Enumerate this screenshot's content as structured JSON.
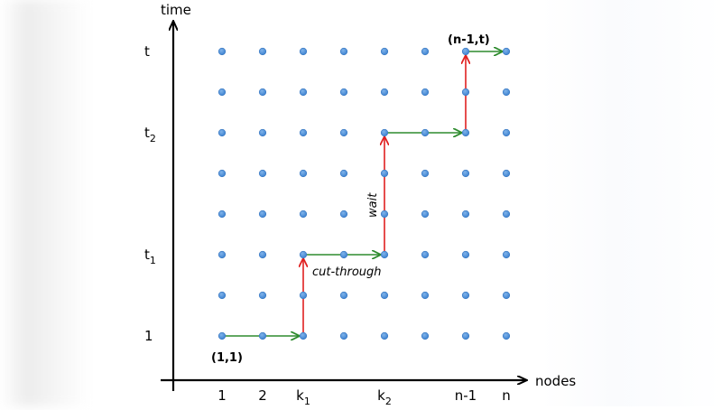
{
  "colors": {
    "dot": "#4a8fd8",
    "dot_stroke": "#3a78c0",
    "forward_arrow": "#2e8b2e",
    "wait_arrow": "#e02020",
    "axis": "#000000"
  },
  "axes": {
    "y_label": "time",
    "x_label": "nodes",
    "y_ticks": [
      {
        "main": "t",
        "sub": "",
        "row": 7
      },
      {
        "main": "t",
        "sub": "2",
        "row": 5
      },
      {
        "main": "t",
        "sub": "1",
        "row": 2
      },
      {
        "main": "1",
        "sub": "",
        "row": 0
      }
    ],
    "x_ticks": [
      {
        "main": "1",
        "sub": "",
        "col": 0
      },
      {
        "main": "2",
        "sub": "",
        "col": 1
      },
      {
        "main": "k",
        "sub": "1",
        "col": 2
      },
      {
        "main": "k",
        "sub": "2",
        "col": 4
      },
      {
        "main": "n-1",
        "sub": "",
        "col": 6
      },
      {
        "main": "n",
        "sub": "",
        "col": 7
      }
    ]
  },
  "grid": {
    "columns": 8,
    "rows": 8
  },
  "annotations": {
    "start_label": "(1,1)",
    "end_label": "(n-1,t)",
    "cut_through_label": "cut-through",
    "wait_label": "wait"
  },
  "path": [
    {
      "type": "forward",
      "from": [
        0,
        0
      ],
      "to": [
        2,
        0
      ]
    },
    {
      "type": "wait",
      "from": [
        2,
        0
      ],
      "to": [
        2,
        2
      ]
    },
    {
      "type": "forward",
      "from": [
        2,
        2
      ],
      "to": [
        4,
        2
      ]
    },
    {
      "type": "wait",
      "from": [
        4,
        2
      ],
      "to": [
        4,
        5
      ]
    },
    {
      "type": "forward",
      "from": [
        4,
        5
      ],
      "to": [
        6,
        5
      ]
    },
    {
      "type": "wait",
      "from": [
        6,
        5
      ],
      "to": [
        6,
        7
      ]
    },
    {
      "type": "forward",
      "from": [
        6,
        7
      ],
      "to": [
        7,
        7
      ]
    }
  ]
}
